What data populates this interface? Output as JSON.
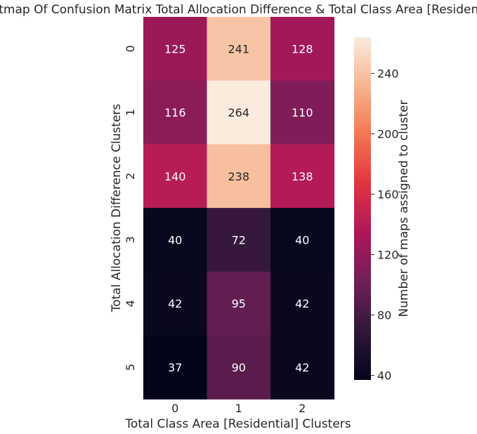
{
  "chart_data": {
    "type": "heatmap",
    "title": "Heatmap Of Confusion Matrix Total Allocation Difference & Total Class Area [Residential]",
    "xlabel": "Total Class Area [Residential] Clusters",
    "ylabel": "Total Allocation Difference Clusters",
    "x_categories": [
      "0",
      "1",
      "2"
    ],
    "y_categories": [
      "0",
      "1",
      "2",
      "3",
      "4",
      "5"
    ],
    "values": [
      [
        125,
        241,
        128
      ],
      [
        116,
        264,
        110
      ],
      [
        140,
        238,
        138
      ],
      [
        40,
        72,
        40
      ],
      [
        42,
        95,
        42
      ],
      [
        37,
        90,
        42
      ]
    ],
    "colorbar": {
      "label": "Number of maps assigned to cluster",
      "min": 37,
      "max": 264,
      "ticks": [
        40,
        80,
        120,
        160,
        200,
        240
      ],
      "colormap": "rocket",
      "stops": [
        "#03051a",
        "#30173a",
        "#701f57",
        "#ae1759",
        "#e13342",
        "#f37651",
        "#f6b48f",
        "#faebdd"
      ]
    },
    "annotation_colors": {
      "on_dark": "#ffffff",
      "on_light": "#262626"
    }
  }
}
